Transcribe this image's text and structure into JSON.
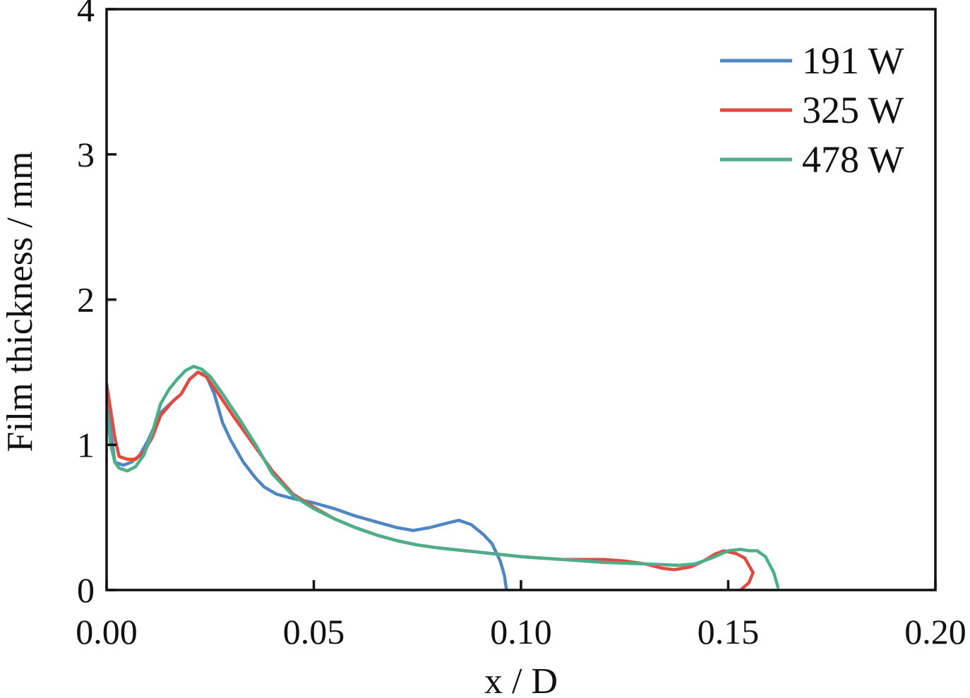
{
  "chart_data": {
    "type": "line",
    "xlabel": "x / D",
    "ylabel": "Film thickness / mm",
    "xlim": [
      0,
      0.2
    ],
    "ylim": [
      0,
      4
    ],
    "xticks": [
      0,
      0.05,
      0.1,
      0.15,
      0.2
    ],
    "xtick_labels": [
      "0.00",
      "0.05",
      "0.10",
      "0.15",
      "0.20"
    ],
    "yticks": [
      0,
      1,
      2,
      3,
      4
    ],
    "ytick_labels": [
      "0",
      "1",
      "2",
      "3",
      "4"
    ],
    "grid": false,
    "legend_position": "top-right",
    "series": [
      {
        "name": "191 W",
        "color": "#4f86c1",
        "points": [
          [
            0.0,
            1.3
          ],
          [
            0.002,
            0.88
          ],
          [
            0.004,
            0.86
          ],
          [
            0.006,
            0.88
          ],
          [
            0.008,
            0.93
          ],
          [
            0.01,
            1.03
          ],
          [
            0.013,
            1.22
          ],
          [
            0.016,
            1.3
          ],
          [
            0.018,
            1.35
          ],
          [
            0.02,
            1.45
          ],
          [
            0.022,
            1.5
          ],
          [
            0.024,
            1.48
          ],
          [
            0.026,
            1.35
          ],
          [
            0.028,
            1.15
          ],
          [
            0.03,
            1.03
          ],
          [
            0.033,
            0.88
          ],
          [
            0.036,
            0.77
          ],
          [
            0.038,
            0.71
          ],
          [
            0.041,
            0.66
          ],
          [
            0.045,
            0.63
          ],
          [
            0.05,
            0.6
          ],
          [
            0.055,
            0.56
          ],
          [
            0.06,
            0.51
          ],
          [
            0.065,
            0.47
          ],
          [
            0.07,
            0.43
          ],
          [
            0.074,
            0.41
          ],
          [
            0.078,
            0.43
          ],
          [
            0.082,
            0.46
          ],
          [
            0.085,
            0.48
          ],
          [
            0.088,
            0.45
          ],
          [
            0.091,
            0.38
          ],
          [
            0.093,
            0.32
          ],
          [
            0.095,
            0.2
          ],
          [
            0.096,
            0.1
          ],
          [
            0.0965,
            0.0
          ]
        ]
      },
      {
        "name": "325 W",
        "color": "#e04a41",
        "points": [
          [
            0.0,
            1.42
          ],
          [
            0.002,
            1.05
          ],
          [
            0.003,
            0.92
          ],
          [
            0.005,
            0.9
          ],
          [
            0.007,
            0.9
          ],
          [
            0.009,
            0.95
          ],
          [
            0.011,
            1.05
          ],
          [
            0.013,
            1.2
          ],
          [
            0.016,
            1.3
          ],
          [
            0.018,
            1.35
          ],
          [
            0.02,
            1.45
          ],
          [
            0.022,
            1.5
          ],
          [
            0.024,
            1.47
          ],
          [
            0.027,
            1.35
          ],
          [
            0.031,
            1.18
          ],
          [
            0.035,
            1.02
          ],
          [
            0.04,
            0.82
          ],
          [
            0.045,
            0.66
          ],
          [
            0.05,
            0.57
          ],
          [
            0.055,
            0.49
          ],
          [
            0.06,
            0.43
          ],
          [
            0.065,
            0.38
          ],
          [
            0.07,
            0.34
          ],
          [
            0.075,
            0.31
          ],
          [
            0.08,
            0.29
          ],
          [
            0.09,
            0.26
          ],
          [
            0.1,
            0.23
          ],
          [
            0.11,
            0.21
          ],
          [
            0.12,
            0.21
          ],
          [
            0.125,
            0.2
          ],
          [
            0.13,
            0.18
          ],
          [
            0.134,
            0.15
          ],
          [
            0.137,
            0.14
          ],
          [
            0.141,
            0.16
          ],
          [
            0.144,
            0.2
          ],
          [
            0.147,
            0.25
          ],
          [
            0.149,
            0.27
          ],
          [
            0.152,
            0.25
          ],
          [
            0.154,
            0.22
          ],
          [
            0.156,
            0.12
          ],
          [
            0.155,
            0.05
          ],
          [
            0.153,
            0.0
          ]
        ]
      },
      {
        "name": "478 W",
        "color": "#4caf89",
        "points": [
          [
            0.0,
            1.28
          ],
          [
            0.001,
            1.0
          ],
          [
            0.002,
            0.88
          ],
          [
            0.003,
            0.84
          ],
          [
            0.005,
            0.82
          ],
          [
            0.007,
            0.85
          ],
          [
            0.009,
            0.93
          ],
          [
            0.011,
            1.08
          ],
          [
            0.013,
            1.28
          ],
          [
            0.015,
            1.38
          ],
          [
            0.017,
            1.45
          ],
          [
            0.019,
            1.51
          ],
          [
            0.021,
            1.54
          ],
          [
            0.023,
            1.52
          ],
          [
            0.025,
            1.47
          ],
          [
            0.028,
            1.35
          ],
          [
            0.032,
            1.18
          ],
          [
            0.036,
            1.0
          ],
          [
            0.04,
            0.8
          ],
          [
            0.045,
            0.65
          ],
          [
            0.05,
            0.56
          ],
          [
            0.055,
            0.49
          ],
          [
            0.06,
            0.43
          ],
          [
            0.065,
            0.38
          ],
          [
            0.07,
            0.34
          ],
          [
            0.075,
            0.31
          ],
          [
            0.08,
            0.29
          ],
          [
            0.09,
            0.26
          ],
          [
            0.1,
            0.23
          ],
          [
            0.11,
            0.21
          ],
          [
            0.12,
            0.19
          ],
          [
            0.13,
            0.18
          ],
          [
            0.138,
            0.17
          ],
          [
            0.142,
            0.18
          ],
          [
            0.146,
            0.22
          ],
          [
            0.15,
            0.27
          ],
          [
            0.153,
            0.28
          ],
          [
            0.155,
            0.27
          ],
          [
            0.157,
            0.27
          ],
          [
            0.159,
            0.23
          ],
          [
            0.161,
            0.12
          ],
          [
            0.162,
            0.02
          ]
        ]
      }
    ]
  }
}
